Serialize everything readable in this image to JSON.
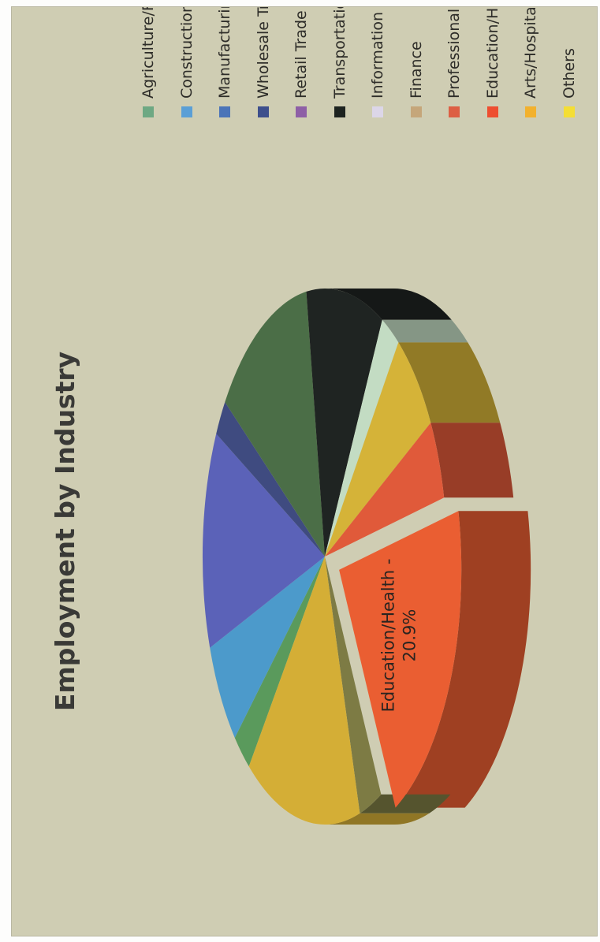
{
  "chart_data": {
    "type": "pie",
    "title": "Employment by Industry",
    "legend_position": "right",
    "exploded_slice": "Education/Health",
    "slices": [
      {
        "name": "Agriculture/Forestry",
        "value": 2.5,
        "color": "#5a9a5c"
      },
      {
        "name": "Construction",
        "value": 6.3,
        "color": "#4c9acb"
      },
      {
        "name": "Manufacturing",
        "value": 13.1,
        "color": "#5b62b8"
      },
      {
        "name": "Wholesale Trade",
        "value": 2.2,
        "color": "#3f4b80"
      },
      {
        "name": "Retail Trade",
        "value": 12.8,
        "color": "#4b6e47"
      },
      {
        "name": "Transportation",
        "value": 10.2,
        "color": "#1f2422"
      },
      {
        "name": "Information",
        "value": 2.5,
        "color": "#c3dcc3"
      },
      {
        "name": "Finance",
        "value": 6.4,
        "color": "#d5b338"
      },
      {
        "name": "Professional",
        "value": 4.8,
        "color": "#e05a3a"
      },
      {
        "name": "Education/Health",
        "value": 20.9,
        "color": "#ea5e32"
      },
      {
        "name": "Arts/Hospitality",
        "value": 3.0,
        "color": "#7d7b44"
      },
      {
        "name": "Others",
        "value": 15.3,
        "color": "#d4ae36"
      }
    ],
    "data_label": "Education/Health -\n20.9%",
    "data_label_lines": [
      "Education/Health -",
      "20.9%"
    ]
  },
  "legend": [
    {
      "label": "Agriculture/Forestry",
      "color": "#6ea883"
    },
    {
      "label": "Construction",
      "color": "#5b9fd6"
    },
    {
      "label": "Manufacturing",
      "color": "#4b74b8"
    },
    {
      "label": "Wholesale Trade",
      "color": "#3d4f8c"
    },
    {
      "label": "Retail Trade",
      "color": "#8e5fa6"
    },
    {
      "label": "Transportation",
      "color": "#1d2320"
    },
    {
      "label": "Information",
      "color": "#dcd6e8"
    },
    {
      "label": "Finance",
      "color": "#c5a67a"
    },
    {
      "label": "Professional",
      "color": "#dd5f44"
    },
    {
      "label": "Education/Health",
      "color": "#ee4e30"
    },
    {
      "label": "Arts/Hospitality",
      "color": "#f2b12e"
    },
    {
      "label": "Others",
      "color": "#f4de35"
    }
  ],
  "background_color": "#cfcdb3"
}
